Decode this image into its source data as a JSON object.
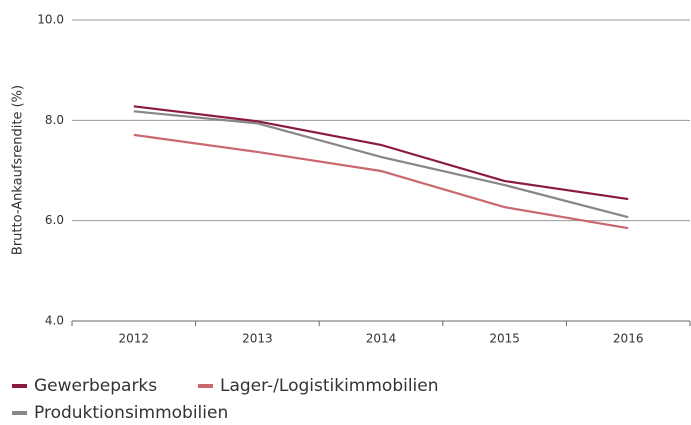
{
  "chart_data": {
    "type": "line",
    "y_label": "Brutto-Ankaufsrendite (%)",
    "categories": [
      "2012",
      "2013",
      "2014",
      "2015",
      "2016"
    ],
    "series": [
      {
        "name": "Gewerbeparks",
        "color": "#8b1a3f",
        "values": [
          8.28,
          7.98,
          7.51,
          6.79,
          6.43
        ]
      },
      {
        "name": "Lager-/Logistikimmobilien",
        "color": "#c9686f",
        "values": [
          7.71,
          7.37,
          6.99,
          6.27,
          5.85
        ]
      },
      {
        "name": "Produktionsimmobilien",
        "color": "#878787",
        "values": [
          8.18,
          7.94,
          7.27,
          6.71,
          6.07
        ]
      }
    ],
    "ylim": [
      4,
      10
    ],
    "yticks": [
      {
        "value": 4,
        "label": "4.0"
      },
      {
        "value": 6,
        "label": "6.0"
      },
      {
        "value": 8,
        "label": "8.0"
      },
      {
        "value": 10,
        "label": "10.0"
      }
    ],
    "grid": true,
    "legend": "bottom"
  }
}
